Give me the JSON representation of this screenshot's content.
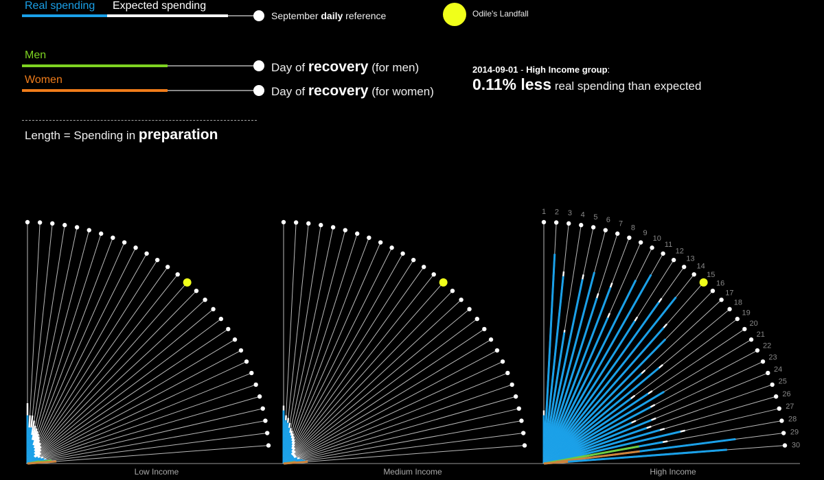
{
  "legend": {
    "real_spending": "Real spending",
    "expected_spending": "Expected spending",
    "september_prefix": "September",
    "september_bold": "daily",
    "september_suffix": "reference",
    "men": "Men",
    "women": "Women",
    "recovery_prefix": "Day of",
    "recovery_bold": "recovery",
    "recovery_men_suffix": "(for men)",
    "recovery_women_suffix": "(for women)",
    "length_prefix": "Length = Spending in",
    "length_bold": "preparation",
    "landfall": "Odile's Landfall"
  },
  "info": {
    "date": "2014-09-01",
    "separator": "-",
    "group": "High Income group",
    "colon": ":",
    "value": "0.11% less",
    "suffix": "real spending than expected"
  },
  "colors": {
    "real": "#1aa0e8",
    "expected": "#ffffff",
    "men": "#7ed321",
    "women": "#f07c1a",
    "landfall": "#f0ff1a",
    "axis": "#999999"
  },
  "chart_data": {
    "type": "radial-bar",
    "days": [
      1,
      2,
      3,
      4,
      5,
      6,
      7,
      8,
      9,
      10,
      11,
      12,
      13,
      14,
      15,
      16,
      17,
      18,
      19,
      20,
      21,
      22,
      23,
      24,
      25,
      26,
      27,
      28,
      29,
      30
    ],
    "day_labels": [
      "1",
      "2",
      "3",
      "4",
      "5",
      "6",
      "7",
      "8",
      "9",
      "10",
      "11",
      "12",
      "13",
      "14",
      "15",
      "16",
      "17",
      "18",
      "19",
      "20",
      "21",
      "22",
      "23",
      "24",
      "25",
      "26",
      "27",
      "28",
      "29",
      "30"
    ],
    "landfall_day": 15,
    "groups": [
      {
        "name": "Low Income",
        "real": [
          0.2,
          0.15,
          0.15,
          0.12,
          0.1,
          0.1,
          0.08,
          0.08,
          0.07,
          0.07,
          0.06,
          0.06,
          0.05,
          0.05,
          0.05,
          0.04,
          0.04,
          0.04,
          0.04,
          0.04,
          0.05,
          0.05,
          0.05,
          0.06,
          0.06,
          0.07,
          0.07,
          0.08,
          0.1,
          0.12
        ],
        "expected": [
          0.25,
          0.2,
          0.2,
          0.18,
          0.16,
          0.15,
          0.14,
          0.13,
          0.12,
          0.11,
          0.1,
          0.1,
          0.09,
          0.09,
          0.08,
          0.08,
          0.07,
          0.07,
          0.07,
          0.06,
          0.06,
          0.06,
          0.06,
          0.07,
          0.07,
          0.07,
          0.08,
          0.08,
          0.09,
          0.1
        ],
        "men": [
          0.02,
          0.02,
          0.02,
          0.02,
          0.02,
          0.02,
          0.02,
          0.02,
          0.02,
          0.02,
          0.02,
          0.02,
          0.02,
          0.02,
          0.02,
          0.02,
          0.02,
          0.02,
          0.02,
          0.02,
          0.02,
          0.02,
          0.02,
          0.02,
          0.02,
          0.02,
          0.02,
          0.05,
          0.1,
          0.03
        ],
        "women": [
          0.02,
          0.02,
          0.02,
          0.02,
          0.02,
          0.02,
          0.02,
          0.02,
          0.02,
          0.02,
          0.02,
          0.02,
          0.02,
          0.02,
          0.02,
          0.02,
          0.02,
          0.02,
          0.02,
          0.02,
          0.02,
          0.02,
          0.02,
          0.02,
          0.02,
          0.02,
          0.02,
          0.03,
          0.06,
          0.12
        ]
      },
      {
        "name": "Medium Income",
        "real": [
          0.22,
          0.18,
          0.17,
          0.15,
          0.13,
          0.12,
          0.11,
          0.1,
          0.09,
          0.08,
          0.07,
          0.07,
          0.06,
          0.06,
          0.05,
          0.05,
          0.05,
          0.05,
          0.05,
          0.05,
          0.05,
          0.05,
          0.05,
          0.06,
          0.06,
          0.06,
          0.07,
          0.08,
          0.09,
          0.1
        ],
        "expected": [
          0.24,
          0.2,
          0.19,
          0.17,
          0.15,
          0.14,
          0.13,
          0.12,
          0.11,
          0.1,
          0.09,
          0.08,
          0.08,
          0.07,
          0.07,
          0.07,
          0.06,
          0.06,
          0.06,
          0.06,
          0.06,
          0.06,
          0.06,
          0.06,
          0.07,
          0.07,
          0.07,
          0.08,
          0.08,
          0.09
        ],
        "men": [
          0.02,
          0.02,
          0.02,
          0.02,
          0.02,
          0.02,
          0.02,
          0.02,
          0.02,
          0.02,
          0.02,
          0.02,
          0.02,
          0.02,
          0.02,
          0.02,
          0.02,
          0.02,
          0.02,
          0.02,
          0.02,
          0.02,
          0.02,
          0.02,
          0.02,
          0.02,
          0.02,
          0.02,
          0.04,
          0.02
        ],
        "women": [
          0.02,
          0.02,
          0.02,
          0.02,
          0.02,
          0.02,
          0.02,
          0.02,
          0.02,
          0.02,
          0.02,
          0.02,
          0.02,
          0.02,
          0.02,
          0.02,
          0.02,
          0.02,
          0.02,
          0.02,
          0.02,
          0.02,
          0.02,
          0.02,
          0.02,
          0.02,
          0.02,
          0.03,
          0.05,
          0.1
        ]
      },
      {
        "name": "High Income",
        "real": [
          0.2,
          0.87,
          0.78,
          0.55,
          0.78,
          0.82,
          0.72,
          0.78,
          0.66,
          0.85,
          0.9,
          0.7,
          0.82,
          0.88,
          0.75,
          0.72,
          0.55,
          0.62,
          0.45,
          0.52,
          0.58,
          0.5,
          0.4,
          0.48,
          0.45,
          0.5,
          0.58,
          0.5,
          0.8,
          0.76
        ],
        "expected": [
          0.22,
          0.85,
          0.8,
          0.56,
          0.8,
          0.8,
          0.74,
          0.8,
          0.68,
          0.83,
          0.88,
          0.72,
          0.84,
          0.86,
          0.77,
          0.7,
          0.57,
          0.64,
          0.47,
          0.54,
          0.56,
          0.52,
          0.42,
          0.5,
          0.47,
          0.52,
          0.6,
          0.52,
          0.78,
          0.74
        ],
        "men": [
          0.02,
          0.02,
          0.02,
          0.02,
          0.02,
          0.02,
          0.02,
          0.02,
          0.02,
          0.02,
          0.02,
          0.02,
          0.02,
          0.02,
          0.02,
          0.02,
          0.02,
          0.02,
          0.02,
          0.02,
          0.02,
          0.02,
          0.02,
          0.02,
          0.02,
          0.02,
          0.02,
          0.4,
          0.05,
          0.02
        ],
        "women": [
          0.02,
          0.02,
          0.02,
          0.02,
          0.02,
          0.02,
          0.02,
          0.02,
          0.02,
          0.02,
          0.02,
          0.02,
          0.02,
          0.02,
          0.02,
          0.02,
          0.02,
          0.02,
          0.02,
          0.02,
          0.02,
          0.02,
          0.02,
          0.02,
          0.02,
          0.02,
          0.02,
          0.02,
          0.4,
          0.1
        ]
      }
    ]
  }
}
